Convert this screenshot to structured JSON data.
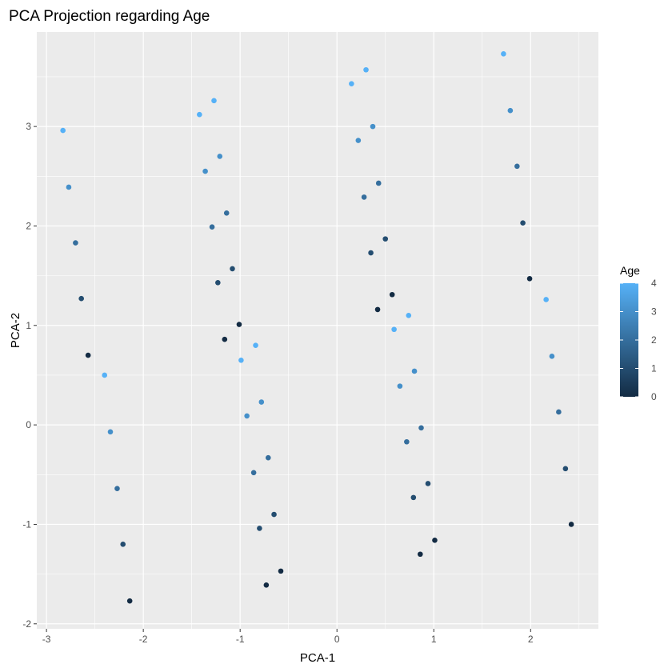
{
  "chart_data": {
    "type": "scatter",
    "title": "PCA Projection regarding Age",
    "xlabel": "PCA-1",
    "ylabel": "PCA-2",
    "xlim": [
      -3.1,
      2.7
    ],
    "ylim": [
      -2.05,
      3.95
    ],
    "x_ticks": [
      -3,
      -2,
      -1,
      0,
      1,
      2
    ],
    "y_ticks": [
      -2,
      -1,
      0,
      1,
      2,
      3
    ],
    "grid": true,
    "background_color": "#ebebeb",
    "grid_color": "#ffffff",
    "legend": {
      "title": "Age",
      "position": "right",
      "type": "colorbar",
      "min": 0,
      "max": 4,
      "ticks": [
        0,
        1,
        2,
        3,
        4
      ],
      "low_color": "#132b43",
      "high_color": "#56b1f7"
    },
    "points": [
      {
        "x": -2.83,
        "y": 2.96,
        "age": 4
      },
      {
        "x": -2.77,
        "y": 2.39,
        "age": 3
      },
      {
        "x": -2.7,
        "y": 1.83,
        "age": 2
      },
      {
        "x": -2.64,
        "y": 1.27,
        "age": 1
      },
      {
        "x": -2.57,
        "y": 0.7,
        "age": 0
      },
      {
        "x": -2.4,
        "y": 0.5,
        "age": 4
      },
      {
        "x": -2.34,
        "y": -0.07,
        "age": 3
      },
      {
        "x": -2.27,
        "y": -0.64,
        "age": 2
      },
      {
        "x": -2.21,
        "y": -1.2,
        "age": 1
      },
      {
        "x": -2.14,
        "y": -1.77,
        "age": 0
      },
      {
        "x": -1.27,
        "y": 3.26,
        "age": 4
      },
      {
        "x": -1.42,
        "y": 3.12,
        "age": 4
      },
      {
        "x": -1.21,
        "y": 2.7,
        "age": 3
      },
      {
        "x": -1.36,
        "y": 2.55,
        "age": 3
      },
      {
        "x": -1.14,
        "y": 2.13,
        "age": 2
      },
      {
        "x": -1.29,
        "y": 1.99,
        "age": 2
      },
      {
        "x": -1.08,
        "y": 1.57,
        "age": 1
      },
      {
        "x": -1.23,
        "y": 1.43,
        "age": 1
      },
      {
        "x": -1.01,
        "y": 1.01,
        "age": 0
      },
      {
        "x": -1.16,
        "y": 0.86,
        "age": 0
      },
      {
        "x": -0.84,
        "y": 0.8,
        "age": 4
      },
      {
        "x": -0.99,
        "y": 0.65,
        "age": 4
      },
      {
        "x": -0.78,
        "y": 0.23,
        "age": 3
      },
      {
        "x": -0.93,
        "y": 0.09,
        "age": 3
      },
      {
        "x": -0.71,
        "y": -0.33,
        "age": 2
      },
      {
        "x": -0.86,
        "y": -0.48,
        "age": 2
      },
      {
        "x": -0.65,
        "y": -0.9,
        "age": 1
      },
      {
        "x": -0.8,
        "y": -1.04,
        "age": 1
      },
      {
        "x": -0.58,
        "y": -1.47,
        "age": 0
      },
      {
        "x": -0.73,
        "y": -1.61,
        "age": 0
      },
      {
        "x": 0.3,
        "y": 3.57,
        "age": 4
      },
      {
        "x": 0.15,
        "y": 3.43,
        "age": 4
      },
      {
        "x": 0.37,
        "y": 3.0,
        "age": 3
      },
      {
        "x": 0.22,
        "y": 2.86,
        "age": 3
      },
      {
        "x": 0.43,
        "y": 2.43,
        "age": 2
      },
      {
        "x": 0.28,
        "y": 2.29,
        "age": 2
      },
      {
        "x": 0.5,
        "y": 1.87,
        "age": 1
      },
      {
        "x": 0.35,
        "y": 1.73,
        "age": 1
      },
      {
        "x": 0.57,
        "y": 1.31,
        "age": 0
      },
      {
        "x": 0.42,
        "y": 1.16,
        "age": 0
      },
      {
        "x": 0.74,
        "y": 1.1,
        "age": 4
      },
      {
        "x": 0.59,
        "y": 0.96,
        "age": 4
      },
      {
        "x": 0.8,
        "y": 0.54,
        "age": 3
      },
      {
        "x": 0.65,
        "y": 0.39,
        "age": 3
      },
      {
        "x": 0.87,
        "y": -0.03,
        "age": 2
      },
      {
        "x": 0.72,
        "y": -0.17,
        "age": 2
      },
      {
        "x": 0.94,
        "y": -0.59,
        "age": 1
      },
      {
        "x": 0.79,
        "y": -0.73,
        "age": 1
      },
      {
        "x": 1.01,
        "y": -1.16,
        "age": 0
      },
      {
        "x": 0.86,
        "y": -1.3,
        "age": 0
      },
      {
        "x": 1.72,
        "y": 3.73,
        "age": 4
      },
      {
        "x": 1.79,
        "y": 3.16,
        "age": 3
      },
      {
        "x": 1.86,
        "y": 2.6,
        "age": 2
      },
      {
        "x": 1.92,
        "y": 2.03,
        "age": 1
      },
      {
        "x": 1.99,
        "y": 1.47,
        "age": 0
      },
      {
        "x": 2.16,
        "y": 1.26,
        "age": 4
      },
      {
        "x": 2.22,
        "y": 0.69,
        "age": 3
      },
      {
        "x": 2.29,
        "y": 0.13,
        "age": 2
      },
      {
        "x": 2.36,
        "y": -0.44,
        "age": 1
      },
      {
        "x": 2.42,
        "y": -1.0,
        "age": 0
      }
    ]
  }
}
